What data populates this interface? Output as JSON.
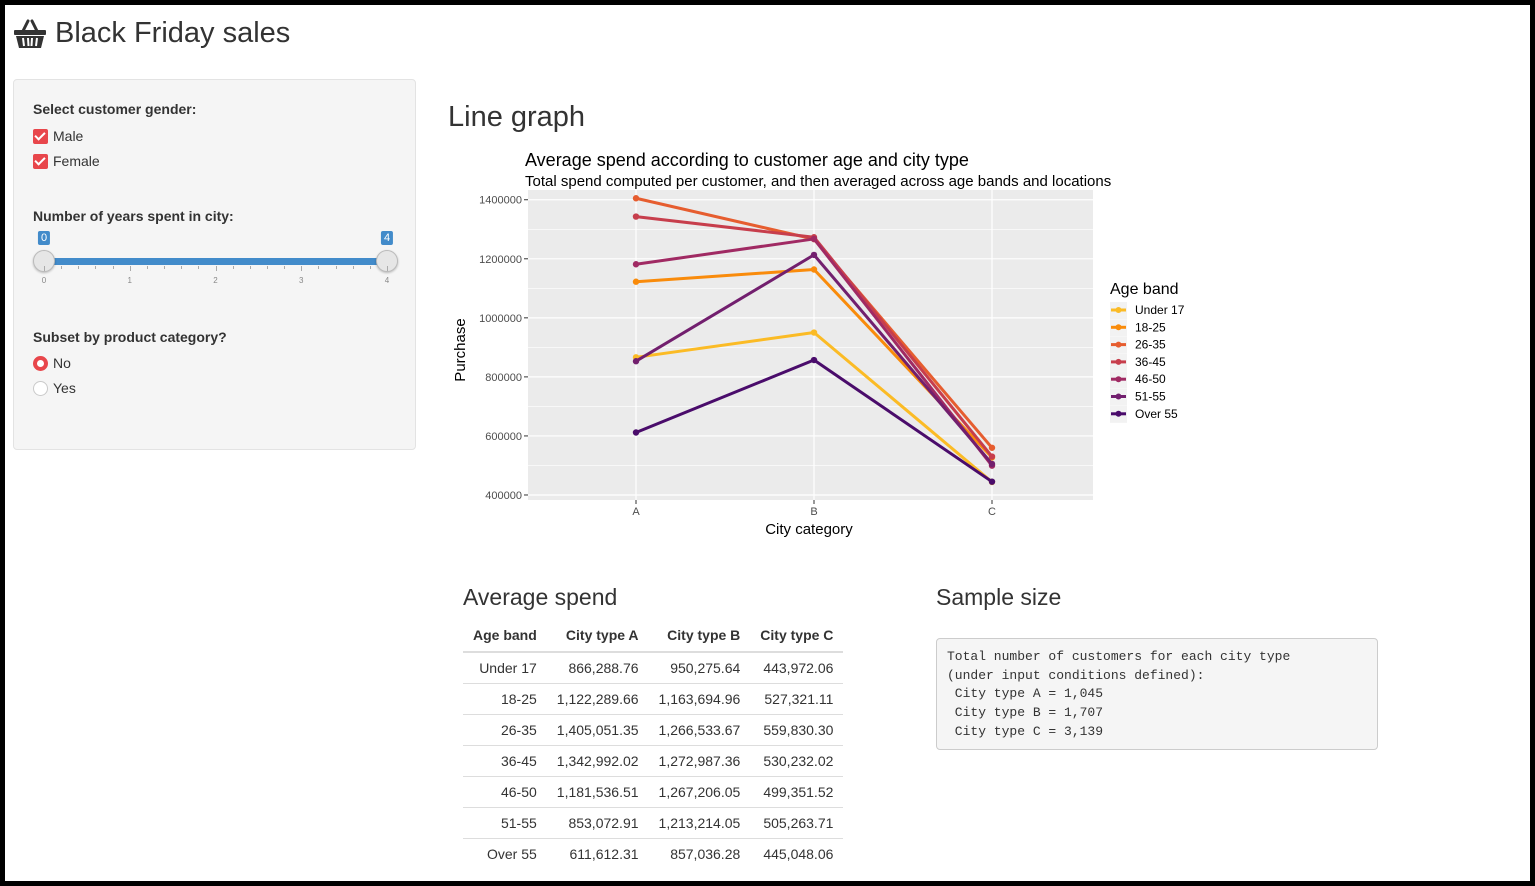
{
  "app": {
    "title": "Black Friday sales",
    "icon": "basket-icon"
  },
  "sidebar": {
    "gender": {
      "label": "Select customer gender:",
      "options": [
        {
          "label": "Male",
          "checked": true
        },
        {
          "label": "Female",
          "checked": true
        }
      ]
    },
    "years": {
      "label": "Number of years spent in city:",
      "min": 0,
      "max": 4,
      "value_low": 0,
      "value_high": 4,
      "low_label": "0",
      "high_label": "4",
      "ticks": [
        "0",
        "1",
        "2",
        "3",
        "4"
      ]
    },
    "subset": {
      "label": "Subset by product category?",
      "options": [
        {
          "label": "No",
          "selected": true
        },
        {
          "label": "Yes",
          "selected": false
        }
      ]
    }
  },
  "main": {
    "title": "Line graph",
    "avg_title": "Average spend",
    "sample_title": "Sample size"
  },
  "chart_data": {
    "type": "line",
    "title": "Average spend according to customer age and city type",
    "subtitle": "Total spend computed per customer, and then averaged across age bands and locations",
    "xlabel": "City category",
    "ylabel": "Purchase",
    "categories": [
      "A",
      "B",
      "C"
    ],
    "ylim": [
      400000,
      1400000
    ],
    "yticks": [
      400000,
      600000,
      800000,
      1000000,
      1200000,
      1400000
    ],
    "ytick_labels": [
      "400000",
      "600000",
      "800000",
      "1000000",
      "1200000",
      "1400000"
    ],
    "grid": true,
    "legend": {
      "title": "Age band",
      "position": "right"
    },
    "series": [
      {
        "name": "Under 17",
        "color": "#FBBB25",
        "values": [
          866288.76,
          950275.64,
          443972.06
        ]
      },
      {
        "name": "18-25",
        "color": "#F98B0B",
        "values": [
          1122289.66,
          1163694.96,
          527321.11
        ]
      },
      {
        "name": "26-35",
        "color": "#E65D2F",
        "values": [
          1405051.35,
          1266533.67,
          559830.3
        ]
      },
      {
        "name": "36-45",
        "color": "#C73E4C",
        "values": [
          1342992.02,
          1272987.36,
          530232.02
        ]
      },
      {
        "name": "46-50",
        "color": "#A02A63",
        "values": [
          1181536.51,
          1267206.05,
          499351.52
        ]
      },
      {
        "name": "51-55",
        "color": "#721F6E",
        "values": [
          853072.91,
          1213214.05,
          505263.71
        ]
      },
      {
        "name": "Over 55",
        "color": "#4A0C6B",
        "values": [
          611612.31,
          857036.28,
          445048.06
        ]
      }
    ]
  },
  "table": {
    "headers": [
      "Age band",
      "City type A",
      "City type B",
      "City type C"
    ],
    "rows": [
      [
        "Under 17",
        "866,288.76",
        "950,275.64",
        "443,972.06"
      ],
      [
        "18-25",
        "1,122,289.66",
        "1,163,694.96",
        "527,321.11"
      ],
      [
        "26-35",
        "1,405,051.35",
        "1,266,533.67",
        "559,830.30"
      ],
      [
        "36-45",
        "1,342,992.02",
        "1,272,987.36",
        "530,232.02"
      ],
      [
        "46-50",
        "1,181,536.51",
        "1,267,206.05",
        "499,351.52"
      ],
      [
        "51-55",
        "853,072.91",
        "1,213,214.05",
        "505,263.71"
      ],
      [
        "Over 55",
        "611,612.31",
        "857,036.28",
        "445,048.06"
      ]
    ]
  },
  "sample": {
    "text": "Total number of customers for each city type\n(under input conditions defined):\n City type A = 1,045\n City type B = 1,707\n City type C = 3,139"
  }
}
